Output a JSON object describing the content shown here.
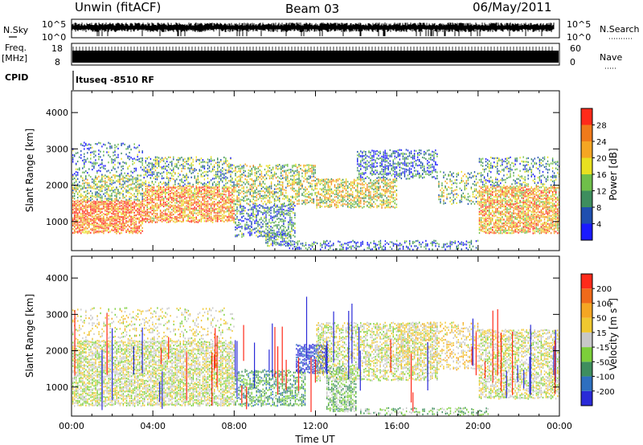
{
  "header": {
    "station": "Unwin (fitACF)",
    "beam": "Beam 03",
    "date": "06/May/2011"
  },
  "status_panels": {
    "nsky_label": "N.Sky",
    "nsky_ticks": [
      "10^5",
      "10^0"
    ],
    "nsearch_label": "N.Search",
    "nsearch_ticks": [
      "10^5",
      "10^0"
    ],
    "freq_label": "Freq.",
    "freq_unit": "[MHz]",
    "freq_ticks": [
      "18",
      "8"
    ],
    "nave_label": "Nave",
    "nave_ticks": [
      "60",
      "0"
    ],
    "cpid_label": "CPID",
    "cpid_value": "Ituseq -8510 RF"
  },
  "colors": {
    "power_scale": [
      "#1a1aff",
      "#1f4fb0",
      "#3e8e5e",
      "#6fbf4a",
      "#e8e020",
      "#f5a623",
      "#f07a1a",
      "#ff2a1a"
    ],
    "velocity_scale": [
      "#2a2ad8",
      "#2e6fbf",
      "#3e8e5e",
      "#7ccf3a",
      "#c8c8c8",
      "#f0c830",
      "#f5a623",
      "#f06a1a",
      "#ff2a1a"
    ]
  },
  "chart_data": [
    {
      "type": "heatmap",
      "panel": "power",
      "xlabel": "",
      "ylabel": "Slant Range [km]",
      "yticks": [
        1000,
        2000,
        3000,
        4000
      ],
      "ylim": [
        200,
        4600
      ],
      "xlim": [
        0,
        24
      ],
      "colorbar": {
        "label": "Power [dB]",
        "ticks": [
          4,
          8,
          12,
          16,
          20,
          24,
          28
        ],
        "range": [
          0,
          32
        ]
      },
      "regions": [
        {
          "t0": 0,
          "t1": 3.5,
          "r0": 700,
          "r1": 1600,
          "value": 26,
          "density": 0.85
        },
        {
          "t0": 0,
          "t1": 3.5,
          "r0": 1600,
          "r1": 2300,
          "value": 14,
          "density": 0.55
        },
        {
          "t0": 0,
          "t1": 3.5,
          "r0": 2300,
          "r1": 3200,
          "value": 8,
          "density": 0.25
        },
        {
          "t0": 3.5,
          "t1": 8,
          "r0": 1000,
          "r1": 2000,
          "value": 24,
          "density": 0.8
        },
        {
          "t0": 3.5,
          "t1": 8,
          "r0": 2000,
          "r1": 2800,
          "value": 12,
          "density": 0.45
        },
        {
          "t0": 8,
          "t1": 11,
          "r0": 600,
          "r1": 1500,
          "value": 8,
          "density": 0.5
        },
        {
          "t0": 8,
          "t1": 12,
          "r0": 1500,
          "r1": 2600,
          "value": 16,
          "density": 0.55
        },
        {
          "t0": 12,
          "t1": 16,
          "r0": 1400,
          "r1": 2200,
          "value": 18,
          "density": 0.6
        },
        {
          "t0": 14,
          "t1": 18,
          "r0": 2200,
          "r1": 3000,
          "value": 7,
          "density": 0.5
        },
        {
          "t0": 9.5,
          "t1": 10.8,
          "r0": 350,
          "r1": 700,
          "value": 10,
          "density": 0.8
        },
        {
          "t0": 10.5,
          "t1": 20,
          "r0": 250,
          "r1": 500,
          "value": 6,
          "density": 0.35
        },
        {
          "t0": 18,
          "t1": 20,
          "r0": 1500,
          "r1": 2400,
          "value": 14,
          "density": 0.35
        },
        {
          "t0": 20,
          "t1": 24,
          "r0": 700,
          "r1": 2000,
          "value": 22,
          "density": 0.8
        },
        {
          "t0": 20,
          "t1": 24,
          "r0": 2000,
          "r1": 2800,
          "value": 10,
          "density": 0.35
        }
      ]
    },
    {
      "type": "heatmap",
      "panel": "velocity",
      "xlabel": "Time UT",
      "ylabel": "Slant Range [km]",
      "xticks": [
        "00:00",
        "04:00",
        "08:00",
        "12:00",
        "16:00",
        "20:00",
        "00:00"
      ],
      "yticks": [
        1000,
        2000,
        3000,
        4000
      ],
      "ylim": [
        200,
        4600
      ],
      "xlim": [
        0,
        24
      ],
      "colorbar": {
        "label": "Velocity [m s^-1]",
        "ticks": [
          200,
          100,
          50,
          15,
          -15,
          -50,
          -100,
          -200
        ],
        "range": [
          -250,
          250
        ]
      },
      "regions": [
        {
          "t0": 0,
          "t1": 8,
          "r0": 500,
          "r1": 2300,
          "value": 0,
          "density": 0.75
        },
        {
          "t0": 0,
          "t1": 8,
          "r0": 2300,
          "r1": 3200,
          "value": 20,
          "density": 0.2
        },
        {
          "t0": 8,
          "t1": 11.5,
          "r0": 500,
          "r1": 1500,
          "value": -90,
          "density": 0.6
        },
        {
          "t0": 11,
          "t1": 12.6,
          "r0": 1400,
          "r1": 2200,
          "value": -210,
          "density": 0.7
        },
        {
          "t0": 12.5,
          "t1": 14,
          "r0": 600,
          "r1": 1600,
          "value": -60,
          "density": 0.6
        },
        {
          "t0": 12,
          "t1": 18,
          "r0": 1200,
          "r1": 2800,
          "value": 0,
          "density": 0.55
        },
        {
          "t0": 16,
          "t1": 20,
          "r0": 1500,
          "r1": 2800,
          "value": 40,
          "density": 0.35
        },
        {
          "t0": 12.5,
          "t1": 14,
          "r0": 350,
          "r1": 650,
          "value": -70,
          "density": 0.7
        },
        {
          "t0": 14,
          "t1": 20.5,
          "r0": 250,
          "r1": 450,
          "value": -60,
          "density": 0.45
        },
        {
          "t0": 20,
          "t1": 24,
          "r0": 700,
          "r1": 2600,
          "value": 5,
          "density": 0.65
        }
      ]
    }
  ],
  "x_axis": {
    "ticks": [
      "00:00",
      "04:00",
      "08:00",
      "12:00",
      "16:00",
      "20:00",
      "00:00"
    ],
    "label": "Time UT"
  }
}
